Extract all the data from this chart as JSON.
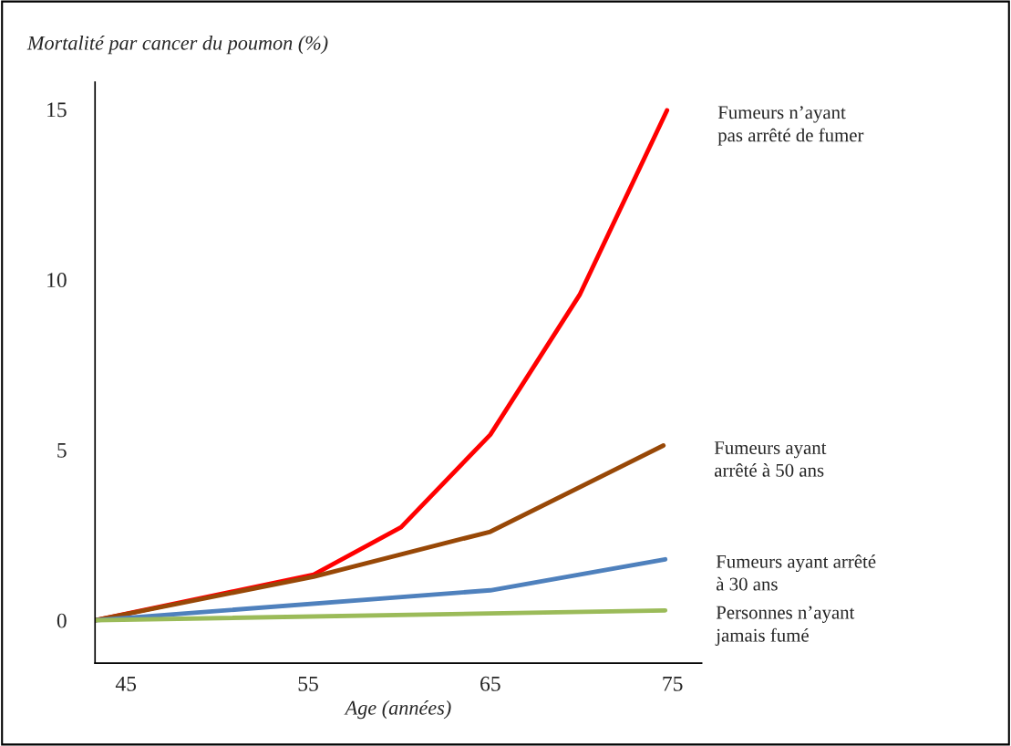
{
  "chart_data": {
    "type": "line",
    "title": "Mortalité par cancer du poumon (%)",
    "xlabel": "Age (années)",
    "xlim": [
      43.3,
      76.6
    ],
    "ylim": [
      -1.26,
      15.8
    ],
    "xticks": [
      45,
      55,
      65,
      75
    ],
    "yticks": [
      0,
      5,
      10,
      15
    ],
    "grid": false,
    "legend": false,
    "marker": "none",
    "line_style": "solid",
    "series": [
      {
        "name": "Fumeurs n’ayant\npas arrêté de fumer",
        "color": "#ff0000",
        "x": [
          43.3,
          55.3,
          60.1,
          65.0,
          69.9,
          74.7
        ],
        "values": [
          0,
          1.34,
          2.73,
          5.45,
          9.55,
          14.97
        ]
      },
      {
        "name": "Fumeurs ayant\narrêté à 50 ans",
        "color": "#984807",
        "x": [
          43.3,
          55.3,
          65.0,
          74.5
        ],
        "values": [
          0,
          1.28,
          2.6,
          5.13
        ]
      },
      {
        "name": "Fumeurs ayant arrêté\nà 30 ans",
        "color": "#4f81bd",
        "x": [
          43.3,
          65.0,
          74.6
        ],
        "values": [
          0,
          0.88,
          1.79
        ]
      },
      {
        "name": "Personnes n’ayant\njamais fumé",
        "color": "#9bbb59",
        "x": [
          43.3,
          74.6
        ],
        "values": [
          0,
          0.29
        ]
      }
    ]
  }
}
